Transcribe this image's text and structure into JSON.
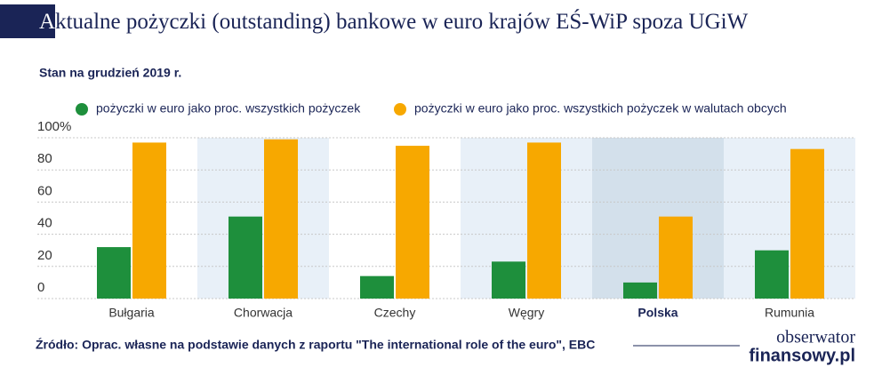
{
  "chart_data": {
    "type": "bar",
    "title": "Aktualne pożyczki (outstanding) bankowe w euro krajów EŚ-WiP spoza UGiW",
    "subtitle": "Stan na grudzień 2019 r.",
    "categories": [
      "Bułgaria",
      "Chorwacja",
      "Czechy",
      "Węgry",
      "Polska",
      "Rumunia"
    ],
    "series": [
      {
        "name": "pożyczki w euro jako proc. wszystkich pożyczek",
        "color": "#1e8f3c",
        "values": [
          32,
          51,
          14,
          23,
          10,
          30
        ]
      },
      {
        "name": "pożyczki w euro jako proc. wszystkich pożyczek w walutach obcych",
        "color": "#f7a800",
        "values": [
          97,
          99,
          95,
          97,
          51,
          93
        ]
      }
    ],
    "ylim": [
      0,
      100
    ],
    "yticks": [
      0,
      20,
      40,
      60,
      80,
      {
        "value": 100,
        "label": "100%"
      }
    ],
    "grid": true,
    "highlight_index": 4,
    "source": "Źródło: Oprac. własne na podstawie danych z raportu \"The international role of the euro\", EBC",
    "logo": [
      "obserwator",
      "finansowy.pl"
    ]
  }
}
